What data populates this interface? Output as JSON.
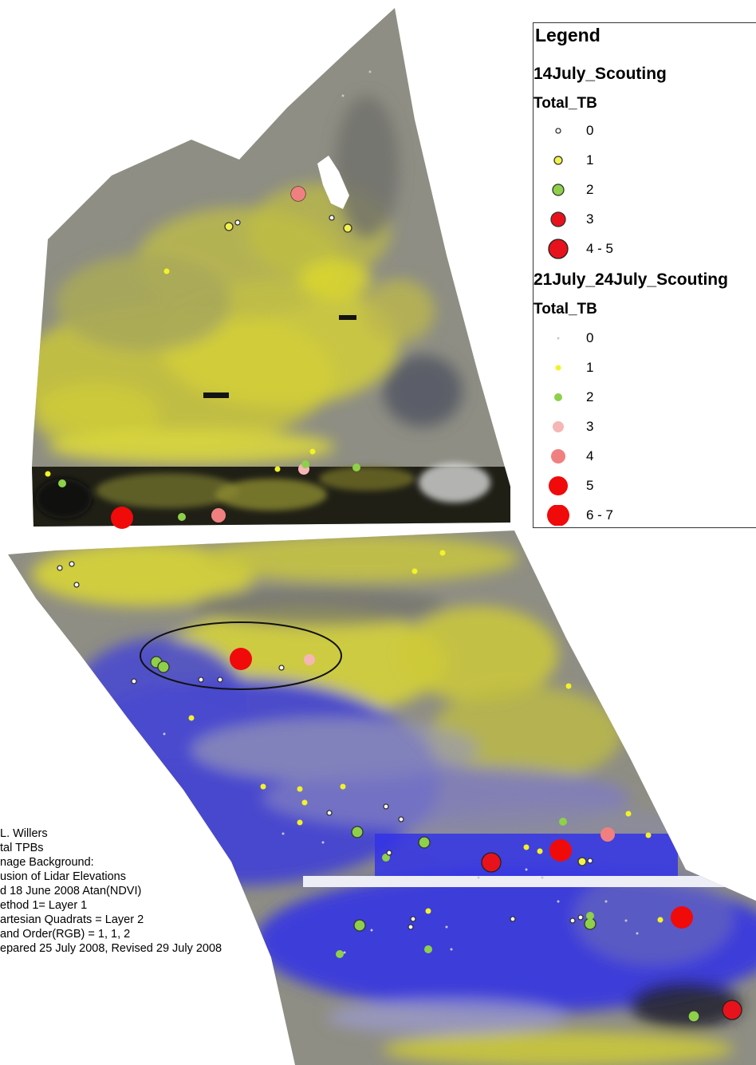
{
  "legend": {
    "title": "Legend",
    "layers": [
      {
        "name": "14July_Scouting",
        "field": "Total_TB",
        "classes": [
          {
            "label": "0",
            "r": 3,
            "fill": "#ffffff",
            "stroke": "#333333"
          },
          {
            "label": "1",
            "r": 5,
            "fill": "#f2f24a",
            "stroke": "#333333"
          },
          {
            "label": "2",
            "r": 7,
            "fill": "#8ed04a",
            "stroke": "#333333"
          },
          {
            "label": "3",
            "r": 9,
            "fill": "#e8121c",
            "stroke": "#333333"
          },
          {
            "label": "4 - 5",
            "r": 12,
            "fill": "#e8121c",
            "stroke": "#222222"
          }
        ]
      },
      {
        "name": "21July_24July_Scouting",
        "field": "Total_TB",
        "classes": [
          {
            "label": "0",
            "r": 1.5,
            "fill": "#c8c8c8",
            "stroke": "none"
          },
          {
            "label": "1",
            "r": 3.5,
            "fill": "#f2f22a",
            "stroke": "none"
          },
          {
            "label": "2",
            "r": 5,
            "fill": "#8ed04a",
            "stroke": "none"
          },
          {
            "label": "3",
            "r": 7,
            "fill": "#f6b6b6",
            "stroke": "none"
          },
          {
            "label": "4",
            "r": 9,
            "fill": "#f08080",
            "stroke": "none"
          },
          {
            "label": "5",
            "r": 12,
            "fill": "#f00a0a",
            "stroke": "none"
          },
          {
            "label": "6 - 7",
            "r": 14,
            "fill": "#f00a0a",
            "stroke": "none"
          }
        ]
      }
    ]
  },
  "notes": [
    "L. Willers",
    "tal TPBs",
    "nage Background:",
    "usion of Lidar Elevations",
    "d 18 June 2008 Atan(NDVI)",
    "ethod 1= Layer 1",
    "artesian Quadrats = Layer 2",
    "and Order(RGB) = 1, 1, 2",
    "epared 25 July 2008, Revised 29 July 2008"
  ],
  "colors": {
    "yellow": "#d6d338",
    "gray": "#8c8c86",
    "blue": "#3b3bd8",
    "dark": "#1e1e14"
  }
}
